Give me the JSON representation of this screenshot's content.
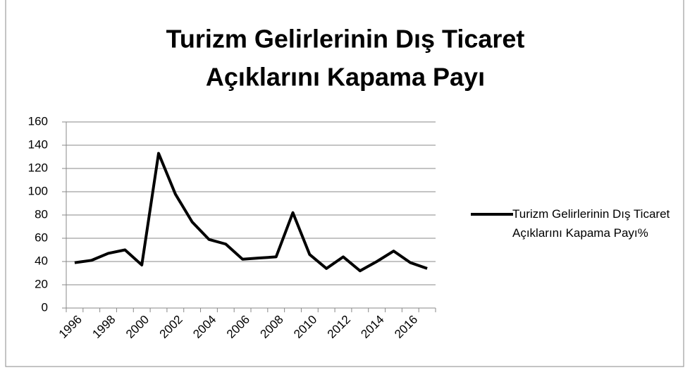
{
  "chart_data": {
    "type": "line",
    "title": [
      "Turizm Gelirlerinin Dış Ticaret",
      "Açıklarını Kapama Payı"
    ],
    "categories": [
      "1996",
      null,
      "1998",
      null,
      "2000",
      null,
      "2002",
      null,
      "2004",
      null,
      "2006",
      null,
      "2008",
      null,
      "2010",
      null,
      "2012",
      null,
      "2014",
      null,
      "2016",
      null
    ],
    "series": [
      {
        "name": "Turizm Gelirlerinin Dış Ticaret Açıklarını Kapama Payı%",
        "color": "#000000",
        "values": [
          39,
          41,
          47,
          50,
          37,
          133,
          98,
          74,
          59,
          55,
          42,
          43,
          44,
          82,
          46,
          34,
          44,
          32,
          40,
          49,
          39,
          34
        ]
      }
    ],
    "ylim": [
      0,
      160
    ],
    "yticks": [
      0,
      20,
      40,
      60,
      80,
      100,
      120,
      140,
      160
    ],
    "grid": true,
    "legend": "right"
  }
}
